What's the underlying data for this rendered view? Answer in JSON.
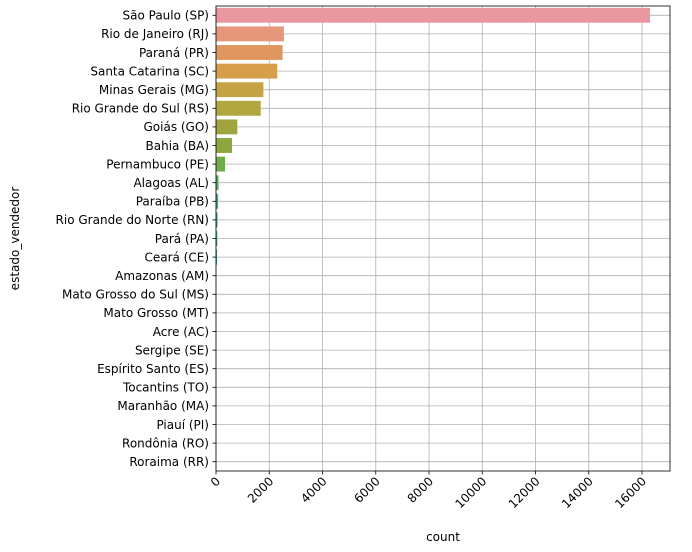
{
  "chart_data": {
    "type": "bar",
    "orientation": "horizontal",
    "title": "",
    "xlabel": "count",
    "ylabel": "estado_vendedor",
    "xlim": [
      0,
      17050
    ],
    "xticks": [
      0,
      2000,
      4000,
      6000,
      8000,
      10000,
      12000,
      14000,
      16000
    ],
    "grid": true,
    "categories": [
      "São Paulo (SP)",
      "Rio de Janeiro (RJ)",
      "Paraná (PR)",
      "Santa Catarina (SC)",
      "Minas Gerais (MG)",
      "Rio Grande do Sul (RS)",
      "Goiás (GO)",
      "Bahia (BA)",
      "Pernambuco (PE)",
      "Alagoas (AL)",
      "Paraíba (PB)",
      "Rio Grande do Norte (RN)",
      "Pará (PA)",
      "Ceará (CE)",
      "Amazonas (AM)",
      "Mato Grosso do Sul (MS)",
      "Mato Grosso (MT)",
      "Acre (AC)",
      "Sergipe (SE)",
      "Espírito Santo (ES)",
      "Tocantins (TO)",
      "Maranhão (MA)",
      "Piauí (PI)",
      "Rondônia (RO)",
      "Roraima (RR)"
    ],
    "values": [
      16300,
      2550,
      2500,
      2300,
      1780,
      1680,
      800,
      600,
      340,
      95,
      80,
      60,
      50,
      40,
      0,
      0,
      0,
      0,
      0,
      0,
      0,
      0,
      0,
      0,
      0
    ],
    "colors": [
      "#e8969f",
      "#e6967b",
      "#e0975f",
      "#d69d4b",
      "#c4a344",
      "#b2a640",
      "#a0a33e",
      "#8ba63c",
      "#70ac4a",
      "#52ae67",
      "#4cab7d",
      "#47a98b",
      "#45a796",
      "#44a5a0",
      "#45a4aa",
      "#47a2b5",
      "#4aa0c1",
      "#539ccf",
      "#6897dd",
      "#8a8ee6",
      "#a487ea",
      "#bb80e9",
      "#d07ae0",
      "#df78cf",
      "#e87bbb"
    ]
  }
}
